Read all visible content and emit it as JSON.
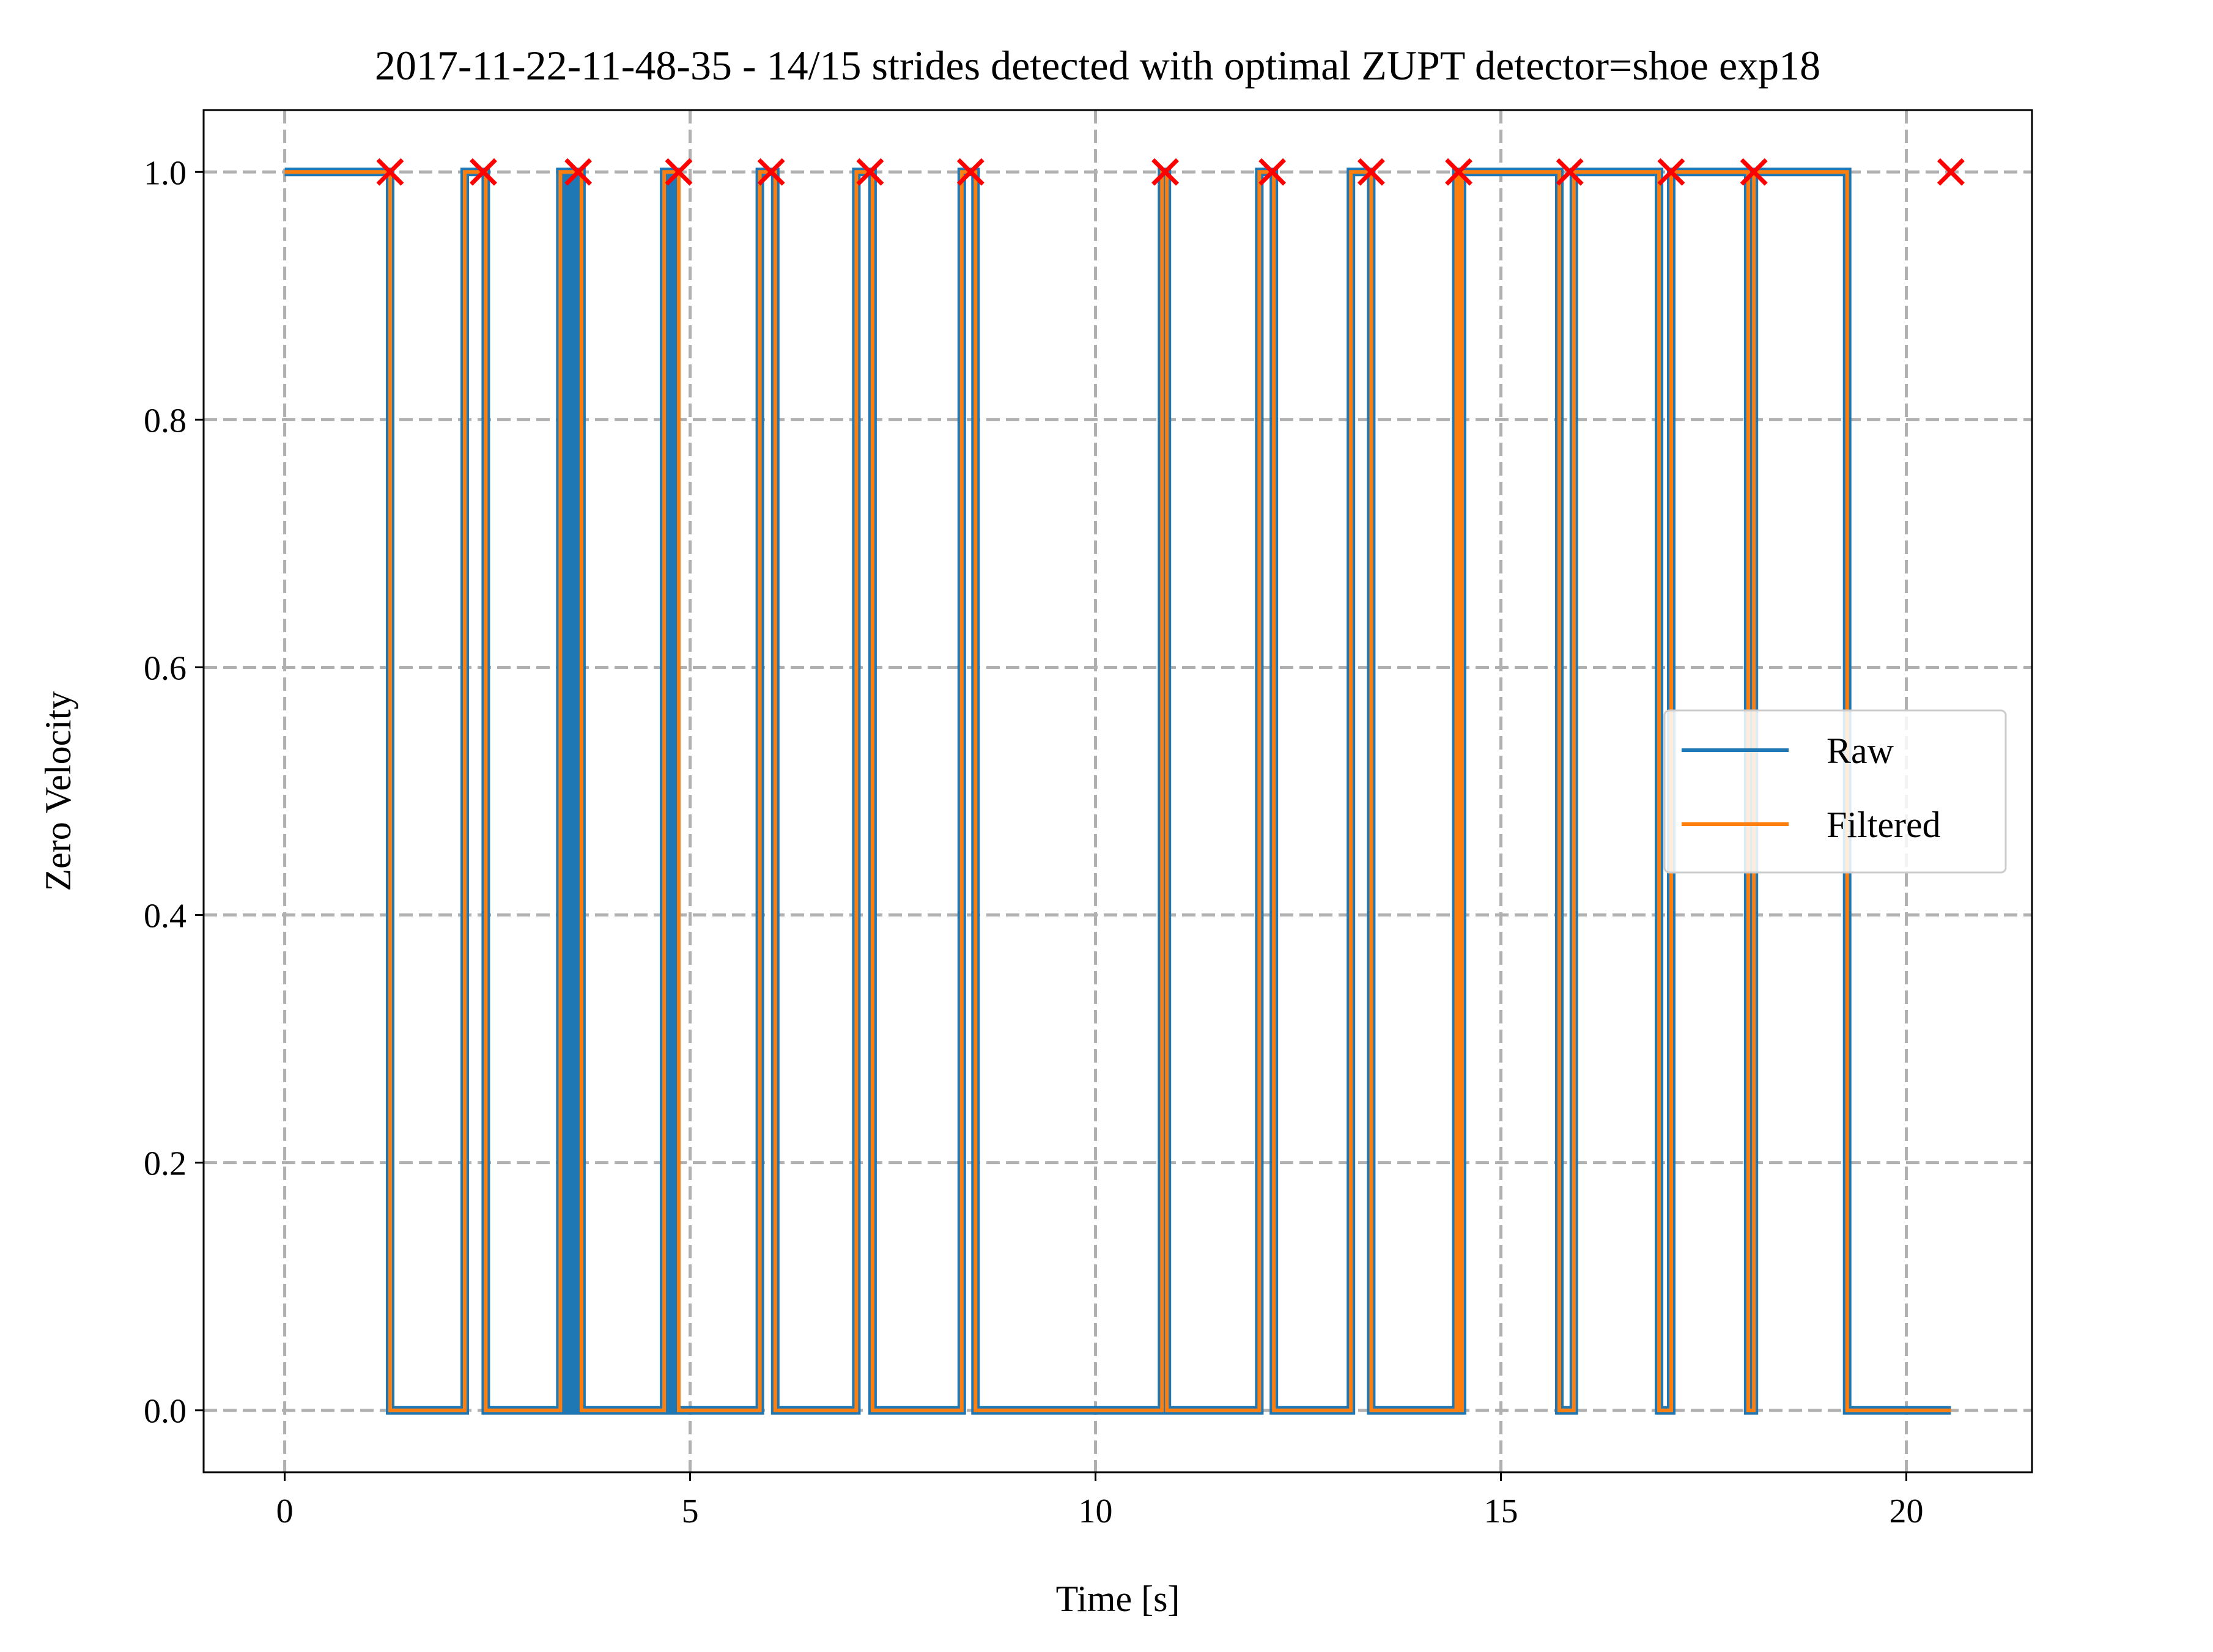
{
  "chart_data": {
    "type": "line",
    "title": "2017-11-22-11-48-35 - 14/15 strides detected with optimal ZUPT detector=shoe exp18",
    "xlabel": "Time [s]",
    "ylabel": "Zero Velocity",
    "xlim": [
      -1.0,
      21.55
    ],
    "ylim": [
      -0.05,
      1.05
    ],
    "x_ticks": [
      0,
      5,
      10,
      15,
      20
    ],
    "y_ticks": [
      0.0,
      0.2,
      0.4,
      0.6,
      0.8,
      1.0
    ],
    "x_tick_labels": [
      "0",
      "5",
      "10",
      "15",
      "20"
    ],
    "y_tick_labels": [
      "0.0",
      "0.2",
      "0.4",
      "0.6",
      "0.8",
      "1.0"
    ],
    "grid": true,
    "legend_position": "center-right",
    "series": [
      {
        "name": "Raw",
        "color": "#1f77b4",
        "style": "step",
        "x": [
          0,
          1.3,
          1.3,
          2.22,
          2.22,
          2.48,
          2.48,
          3.4,
          3.4,
          3.5,
          3.5,
          3.54,
          3.54,
          3.58,
          3.58,
          3.62,
          3.62,
          3.66,
          3.66,
          4.68,
          4.68,
          4.74,
          4.74,
          4.78,
          4.78,
          4.82,
          4.82,
          4.86,
          4.86,
          5.86,
          5.86,
          6.05,
          6.05,
          7.05,
          7.05,
          7.25,
          7.25,
          8.35,
          8.35,
          8.52,
          8.52,
          10.82,
          10.82,
          10.88,
          10.88,
          12.02,
          12.02,
          12.2,
          12.2,
          13.15,
          13.15,
          13.4,
          13.4,
          14.45,
          14.45,
          14.48,
          14.48,
          14.52,
          14.52,
          15.72,
          15.72,
          15.9,
          15.9,
          16.95,
          16.95,
          17.1,
          17.1,
          18.05,
          18.05,
          18.12,
          18.12,
          19.27,
          19.27,
          20.55
        ],
        "values": [
          1,
          1,
          0,
          0,
          1,
          1,
          0,
          0,
          1,
          1,
          0,
          0,
          1,
          1,
          0,
          0,
          1,
          1,
          0,
          0,
          1,
          1,
          0,
          0,
          1,
          1,
          0,
          0,
          0,
          0,
          1,
          1,
          0,
          0,
          1,
          1,
          0,
          0,
          1,
          1,
          0,
          0,
          1,
          1,
          0,
          0,
          1,
          1,
          0,
          0,
          1,
          1,
          0,
          0,
          1,
          1,
          0,
          0,
          1,
          1,
          0,
          0,
          1,
          1,
          0,
          0,
          1,
          1,
          0,
          0,
          1,
          1,
          0,
          0
        ]
      },
      {
        "name": "Filtered",
        "color": "#ff7f0e",
        "style": "step",
        "x": [
          0,
          1.3,
          1.3,
          2.22,
          2.22,
          2.48,
          2.48,
          3.4,
          3.4,
          3.66,
          3.66,
          4.68,
          4.68,
          4.86,
          4.86,
          5.86,
          5.86,
          6.05,
          6.05,
          7.05,
          7.05,
          7.25,
          7.25,
          8.35,
          8.35,
          8.52,
          8.52,
          10.82,
          10.82,
          10.88,
          10.88,
          12.02,
          12.02,
          12.2,
          12.2,
          13.15,
          13.15,
          13.4,
          13.4,
          14.45,
          14.45,
          14.48,
          14.48,
          14.52,
          14.52,
          15.72,
          15.72,
          15.9,
          15.9,
          16.95,
          16.95,
          17.1,
          17.1,
          18.05,
          18.05,
          18.12,
          18.12,
          19.27,
          19.27,
          20.55
        ],
        "values": [
          1,
          1,
          0,
          0,
          1,
          1,
          0,
          0,
          1,
          1,
          0,
          0,
          1,
          1,
          0,
          0,
          1,
          1,
          0,
          0,
          1,
          1,
          0,
          0,
          1,
          1,
          0,
          0,
          1,
          1,
          0,
          0,
          1,
          1,
          0,
          0,
          1,
          1,
          0,
          0,
          1,
          1,
          0,
          0,
          1,
          1,
          0,
          0,
          1,
          1,
          0,
          0,
          1,
          1,
          0,
          0,
          1,
          1,
          0,
          0
        ]
      }
    ],
    "markers": {
      "color": "#ff0000",
      "symbol": "x",
      "x": [
        1.3,
        2.45,
        3.62,
        4.86,
        6.0,
        7.22,
        8.46,
        10.86,
        12.18,
        13.4,
        14.48,
        15.85,
        17.1,
        18.12,
        20.55
      ],
      "y": [
        1,
        1,
        1,
        1,
        1,
        1,
        1,
        1,
        1,
        1,
        1,
        1,
        1,
        1,
        1
      ]
    }
  }
}
